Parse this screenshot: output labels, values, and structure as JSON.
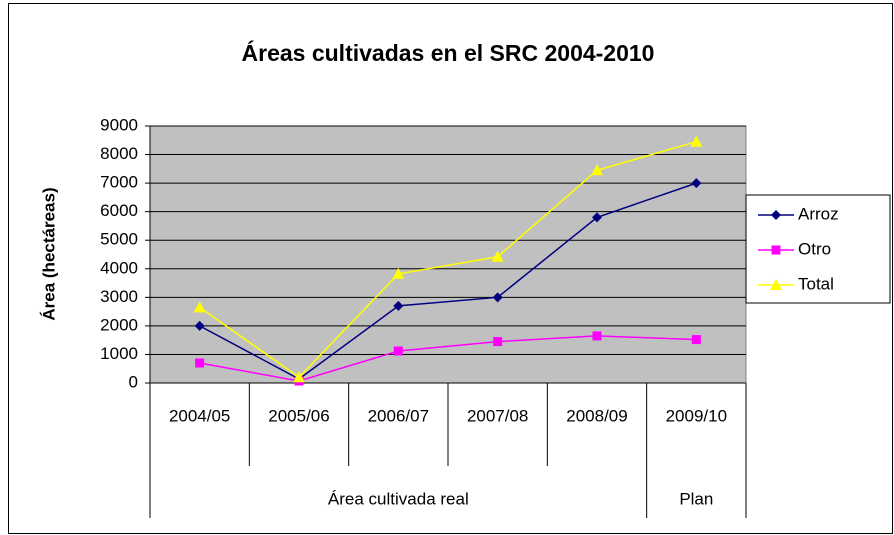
{
  "chart_data": {
    "type": "line",
    "title": "Áreas cultivadas en el SRC 2004-2010",
    "y_label": "Área (hectáreas)",
    "categories": [
      "2004/05",
      "2005/06",
      "2006/07",
      "2007/08",
      "2008/09",
      "2009/10"
    ],
    "category_groups": [
      {
        "label": "Área cultivada real",
        "count": 5
      },
      {
        "label": "Plan",
        "count": 1
      }
    ],
    "series": [
      {
        "name": "Arroz",
        "color": "#000080",
        "marker": "diamond",
        "values": [
          2000,
          140,
          2700,
          3000,
          5800,
          7000
        ]
      },
      {
        "name": "Otro",
        "color": "#ff00ff",
        "marker": "square",
        "values": [
          700,
          70,
          1120,
          1450,
          1650,
          1520
        ]
      },
      {
        "name": "Total",
        "color": "#ffff00",
        "marker": "triangle",
        "values": [
          2650,
          200,
          3820,
          4420,
          7450,
          8450
        ]
      }
    ],
    "ylim": [
      0,
      9000
    ],
    "yticks": [
      0,
      1000,
      2000,
      3000,
      4000,
      5000,
      6000,
      7000,
      8000,
      9000
    ],
    "grid": true,
    "plot_background": "#c0c0c0",
    "legend": "right"
  }
}
